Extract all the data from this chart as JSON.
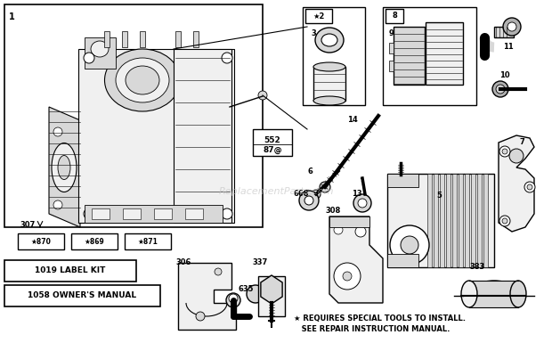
{
  "bg_color": "#ffffff",
  "fig_w": 6.2,
  "fig_h": 3.85,
  "dpi": 100,
  "watermark": "ReplacementParts.com",
  "star_note_line1": "★ REQUIRES SPECIAL TOOLS TO INSTALL.",
  "star_note_line2": "   SEE REPAIR INSTRUCTION MANUAL.",
  "label_kit": "1019 LABEL KIT",
  "owners_manual": "1058 OWNER'S MANUAL"
}
